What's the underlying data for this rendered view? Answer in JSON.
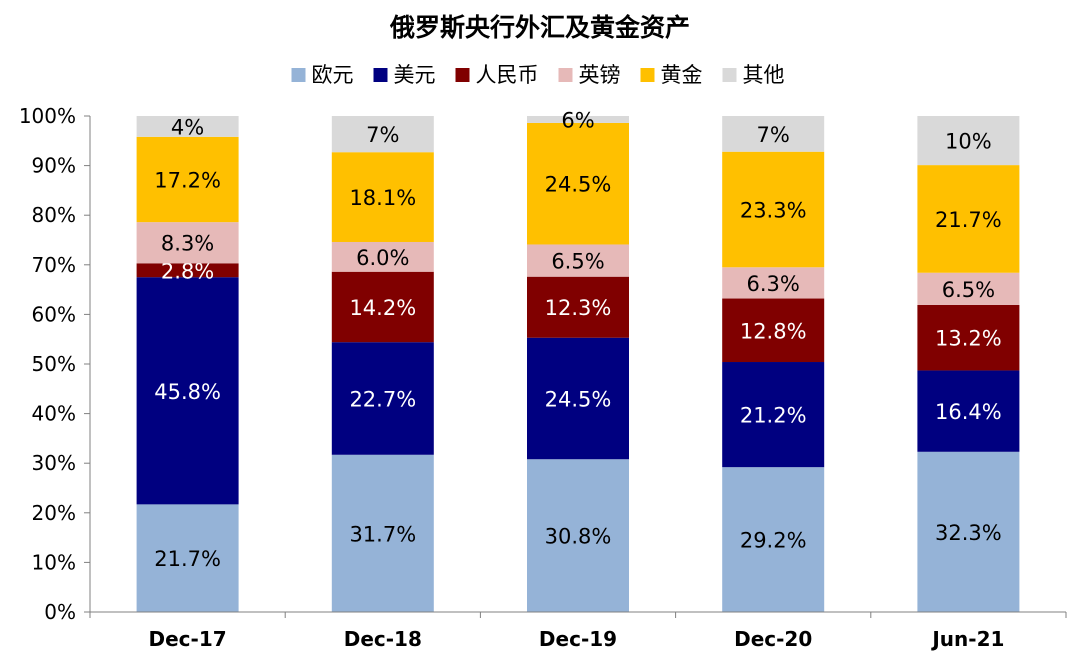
{
  "chart_data": {
    "type": "bar",
    "stacked": true,
    "percent": true,
    "title": "俄罗斯央行外汇及黄金资产",
    "categories": [
      "Dec-17",
      "Dec-18",
      "Dec-19",
      "Dec-20",
      "Jun-21"
    ],
    "ylim": [
      0,
      100
    ],
    "yticks": [
      "0%",
      "10%",
      "20%",
      "30%",
      "40%",
      "50%",
      "60%",
      "70%",
      "80%",
      "90%",
      "100%"
    ],
    "legend_position": "top",
    "grid": false,
    "series": [
      {
        "name": "欧元",
        "color": "#95b3d7",
        "values": [
          21.7,
          31.7,
          30.8,
          29.2,
          32.3
        ],
        "labels": [
          "21.7%",
          "31.7%",
          "30.8%",
          "29.2%",
          "32.3%"
        ],
        "label_color": "#000000"
      },
      {
        "name": "美元",
        "color": "#000080",
        "values": [
          45.8,
          22.7,
          24.5,
          21.2,
          16.4
        ],
        "labels": [
          "45.8%",
          "22.7%",
          "24.5%",
          "21.2%",
          "16.4%"
        ],
        "label_color": "#ffffff"
      },
      {
        "name": "人民币",
        "color": "#800000",
        "values": [
          2.8,
          14.2,
          12.3,
          12.8,
          13.2
        ],
        "labels": [
          "2.8%",
          "14.2%",
          "12.3%",
          "12.8%",
          "13.2%"
        ],
        "label_color": "#ffffff"
      },
      {
        "name": "英镑",
        "color": "#e6b9b8",
        "values": [
          8.3,
          6.0,
          6.5,
          6.3,
          6.5
        ],
        "labels": [
          "8.3%",
          "6.0%",
          "6.5%",
          "6.3%",
          "6.5%"
        ],
        "label_color": "#000000"
      },
      {
        "name": "黄金",
        "color": "#ffc000",
        "values": [
          17.2,
          18.1,
          24.5,
          23.3,
          21.7
        ],
        "labels": [
          "17.2%",
          "18.1%",
          "24.5%",
          "23.3%",
          "21.7%"
        ],
        "label_color": "#000000"
      },
      {
        "name": "其他",
        "color": "#d9d9d9",
        "values": [
          4.2,
          7.3,
          6.1,
          7.2,
          9.9
        ],
        "labels": [
          "4%",
          "7%",
          "6%",
          "7%",
          "10%"
        ],
        "label_color": "#000000"
      }
    ]
  }
}
